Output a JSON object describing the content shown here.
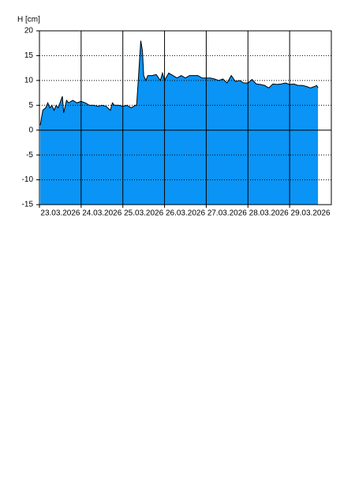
{
  "chart_data": {
    "type": "area",
    "ylabel": "H [cm]",
    "x": [
      0.02,
      0.08,
      0.15,
      0.2,
      0.25,
      0.3,
      0.35,
      0.4,
      0.45,
      0.55,
      0.58,
      0.65,
      0.7,
      0.8,
      0.9,
      1.0,
      1.1,
      1.2,
      1.3,
      1.4,
      1.5,
      1.6,
      1.7,
      1.75,
      1.8,
      1.9,
      2.0,
      2.1,
      2.2,
      2.3,
      2.33,
      2.37,
      2.43,
      2.47,
      2.5,
      2.55,
      2.6,
      2.7,
      2.8,
      2.9,
      2.95,
      3.0,
      3.1,
      3.2,
      3.3,
      3.4,
      3.5,
      3.6,
      3.7,
      3.8,
      3.9,
      4.0,
      4.1,
      4.2,
      4.3,
      4.4,
      4.5,
      4.6,
      4.7,
      4.8,
      4.9,
      5.0,
      5.1,
      5.2,
      5.3,
      5.4,
      5.5,
      5.6,
      5.7,
      5.8,
      5.9,
      6.0,
      6.1,
      6.2,
      6.3,
      6.4,
      6.5,
      6.6,
      6.65,
      6.68
    ],
    "values": [
      1,
      4,
      4.5,
      5.5,
      4.5,
      5,
      4,
      5,
      4.5,
      6.8,
      3.5,
      6,
      5.5,
      6,
      5.5,
      5.8,
      5.5,
      5,
      5,
      4.8,
      5,
      4.8,
      4,
      5.5,
      5,
      5,
      4.8,
      5,
      4.5,
      5,
      5,
      10,
      18,
      16,
      11,
      10,
      11,
      11,
      11.2,
      10,
      11.5,
      10,
      11.5,
      11,
      10.5,
      11,
      10.5,
      11,
      11,
      11,
      10.5,
      10.5,
      10.5,
      10.3,
      10,
      10.3,
      9.5,
      11,
      9.8,
      10,
      9.5,
      9.5,
      10.2,
      9.3,
      9.2,
      9,
      8.5,
      9.3,
      9.2,
      9.3,
      9.5,
      9.2,
      9.3,
      9,
      9,
      8.8,
      8.5,
      8.8,
      9,
      8.5
    ],
    "color": "#0a94f5",
    "xlim": [
      0,
      7
    ],
    "xticks": [
      {
        "value": 0,
        "label": "23.03.2026"
      },
      {
        "value": 1,
        "label": "24.03.2026"
      },
      {
        "value": 2,
        "label": "25.03.2026"
      },
      {
        "value": 3,
        "label": "26.03.2026"
      },
      {
        "value": 4,
        "label": "27.03.2026"
      },
      {
        "value": 5,
        "label": "28.03.2026"
      },
      {
        "value": 6,
        "label": "29.03.2026"
      }
    ],
    "ylim": [
      -15,
      20
    ],
    "yticks": [
      -15,
      -10,
      -5,
      0,
      5,
      10,
      15,
      20
    ],
    "grid": true
  }
}
